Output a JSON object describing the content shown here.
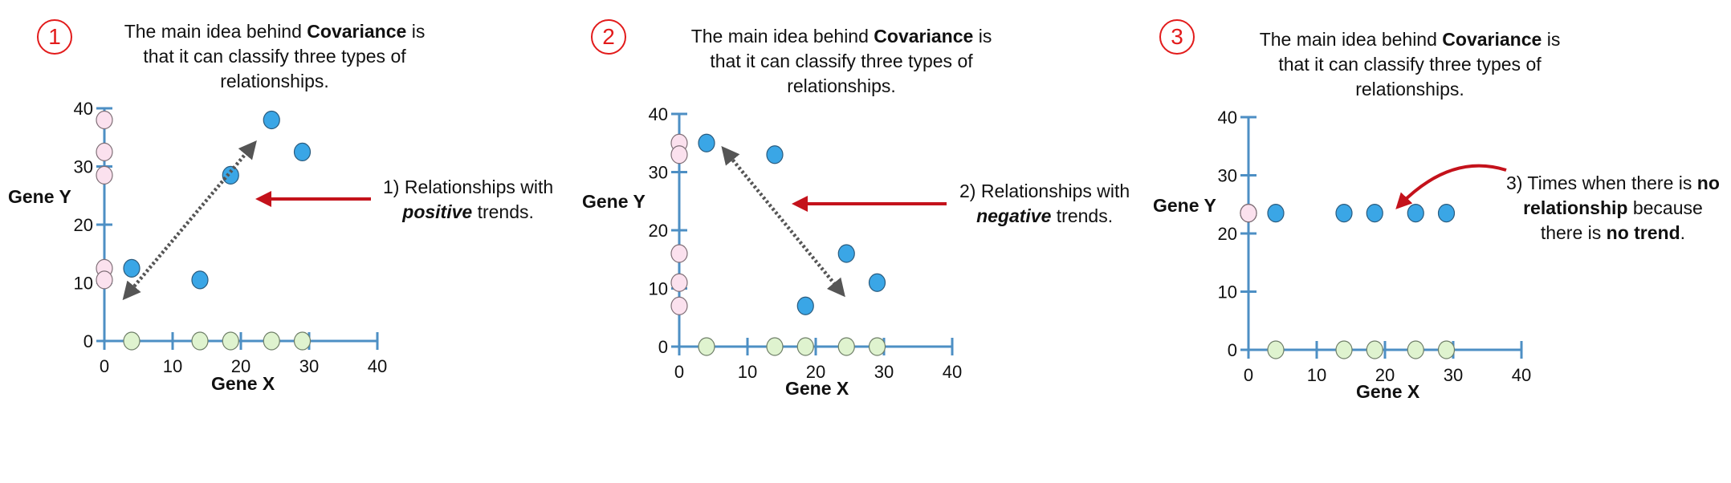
{
  "panels": [
    {
      "number": "1",
      "heading_pre": "The main idea behind ",
      "heading_bold": "Covariance",
      "heading_post": " is that it can classify three types of relationships.",
      "annotation": {
        "l1_pre": "1) Relationships with",
        "l2_em": "positive",
        "l2_post": " trends."
      }
    },
    {
      "number": "2",
      "heading_pre": "The main idea behind ",
      "heading_bold": "Covariance",
      "heading_post": " is that it can classify three types of relationships.",
      "annotation": {
        "l1_pre": "2) Relationships with",
        "l2_em": "negative",
        "l2_post": " trends."
      }
    },
    {
      "number": "3",
      "heading_pre": "The main idea behind ",
      "heading_bold": "Covariance",
      "heading_post": " is that it can classify three types of relationships.",
      "annotation": {
        "l1_pre": "3) Times when there is ",
        "l1_bold": "no",
        "l2_bold": "relationship",
        "l2_post": " because",
        "l3_pre": "there is ",
        "l3_bold": "no trend",
        "l3_post": "."
      }
    }
  ],
  "chart_data": [
    {
      "type": "scatter",
      "title": "",
      "xlabel": "Gene X",
      "ylabel": "Gene Y",
      "xlim": [
        0,
        40
      ],
      "ylim": [
        0,
        40
      ],
      "xticks": [
        "0",
        "10",
        "20",
        "30",
        "40"
      ],
      "yticks": [
        "0",
        "10",
        "20",
        "30",
        "40"
      ],
      "points": [
        [
          4,
          12.5
        ],
        [
          14,
          10.5
        ],
        [
          18.5,
          28.5
        ],
        [
          24.5,
          38
        ],
        [
          29,
          32.5
        ]
      ],
      "trend": "positive",
      "colors": {
        "point": "#3aa6e6",
        "x_projection": "#dff3cf",
        "y_projection": "#fbe1ee",
        "axis": "#4d8fc4",
        "arrow": "#c4121b"
      }
    },
    {
      "type": "scatter",
      "title": "",
      "xlabel": "Gene X",
      "ylabel": "Gene Y",
      "xlim": [
        0,
        40
      ],
      "ylim": [
        0,
        40
      ],
      "xticks": [
        "0",
        "10",
        "20",
        "30",
        "40"
      ],
      "yticks": [
        "0",
        "10",
        "20",
        "30",
        "40"
      ],
      "points": [
        [
          4,
          35
        ],
        [
          14,
          33
        ],
        [
          18.5,
          7
        ],
        [
          24.5,
          16
        ],
        [
          29,
          11
        ]
      ],
      "trend": "negative",
      "colors": {
        "point": "#3aa6e6",
        "x_projection": "#dff3cf",
        "y_projection": "#fbe1ee",
        "axis": "#4d8fc4",
        "arrow": "#c4121b"
      }
    },
    {
      "type": "scatter",
      "title": "",
      "xlabel": "Gene X",
      "ylabel": "Gene Y",
      "xlim": [
        0,
        40
      ],
      "ylim": [
        0,
        40
      ],
      "xticks": [
        "0",
        "10",
        "20",
        "30",
        "40"
      ],
      "yticks": [
        "0",
        "10",
        "20",
        "30",
        "40"
      ],
      "points": [
        [
          4,
          23.5
        ],
        [
          14,
          23.5
        ],
        [
          18.5,
          23.5
        ],
        [
          24.5,
          23.5
        ],
        [
          29,
          23.5
        ]
      ],
      "trend": "none",
      "colors": {
        "point": "#3aa6e6",
        "x_projection": "#dff3cf",
        "y_projection": "#fbe1ee",
        "axis": "#4d8fc4",
        "arrow": "#c4121b"
      }
    }
  ]
}
